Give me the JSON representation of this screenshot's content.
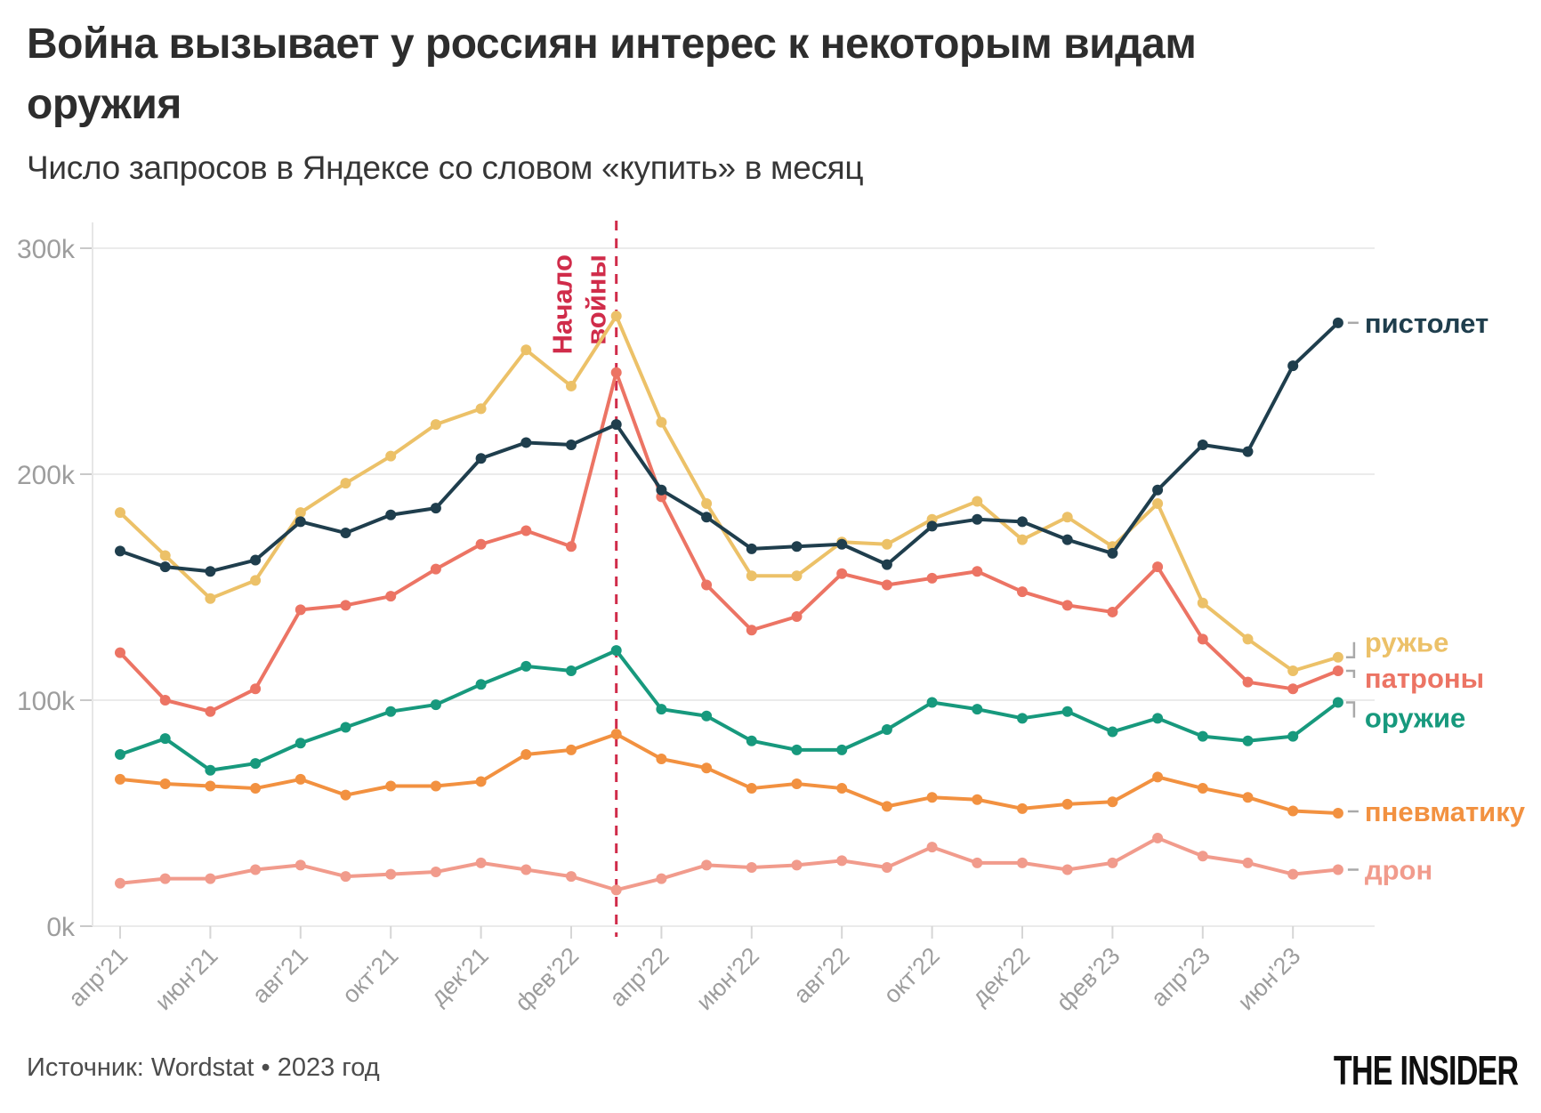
{
  "header": {
    "title_line1": "Война вызывает у россиян интерес к некоторым видам",
    "title_line2": "оружия",
    "subtitle": "Число запросов в Яндексе со словом «купить» в месяц"
  },
  "footer": {
    "source": "Источник: Wordstat • 2023 год",
    "logo": "THE INSIDER"
  },
  "chart_data": {
    "type": "line",
    "title": "Война вызывает у россиян интерес к некоторым видам оружия",
    "subtitle": "Число запросов в Яндексе со словом «купить» в месяц",
    "unit": "thousands of queries per month",
    "grid": "horizontal",
    "legend_position": "right of line ends",
    "ylim": [
      0,
      300
    ],
    "y_ticks": [
      {
        "value": 0,
        "label": "0k"
      },
      {
        "value": 100,
        "label": "100k"
      },
      {
        "value": 200,
        "label": "200k"
      },
      {
        "value": 300,
        "label": "300k"
      }
    ],
    "x": [
      "апр’21",
      "май’21",
      "июн’21",
      "июл’21",
      "авг’21",
      "сен’21",
      "окт’21",
      "ноя’21",
      "дек’21",
      "янв’22",
      "фев’22",
      "мар’22",
      "апр’22",
      "май’22",
      "июн’22",
      "июл’22",
      "авг’22",
      "сен’22",
      "окт’22",
      "ноя’22",
      "дек’22",
      "янв’23",
      "фев’23",
      "мар’23",
      "апр’23",
      "май’23",
      "июн’23",
      "июл’23"
    ],
    "x_tick_labels": [
      "апр’21",
      "июн’21",
      "авг’21",
      "окт’21",
      "дек’21",
      "фев’22",
      "апр’22",
      "июн’22",
      "авг’22",
      "окт’22",
      "дек’22",
      "фев’23",
      "апр’23",
      "июн’23"
    ],
    "annotation": {
      "label": "Начало войны",
      "lines": [
        "Начало",
        "войны"
      ],
      "x": "мар’22",
      "style": "vertical dashed line",
      "color": "#d02c4a"
    },
    "series": [
      {
        "id": "pistolet",
        "name": "пистолет",
        "color": "#1f3e4d",
        "values": [
          166,
          159,
          157,
          162,
          179,
          174,
          182,
          185,
          207,
          214,
          213,
          222,
          193,
          181,
          167,
          168,
          169,
          160,
          177,
          180,
          179,
          171,
          165,
          193,
          213,
          210,
          248,
          267
        ]
      },
      {
        "id": "ruzhye",
        "name": "ружье",
        "color": "#ecc168",
        "values": [
          183,
          164,
          145,
          153,
          183,
          196,
          208,
          222,
          229,
          255,
          239,
          270,
          223,
          187,
          155,
          155,
          170,
          169,
          180,
          188,
          171,
          181,
          168,
          187,
          143,
          127,
          113,
          119
        ]
      },
      {
        "id": "patrony",
        "name": "патроны",
        "color": "#ec7464",
        "values": [
          121,
          100,
          95,
          105,
          140,
          142,
          146,
          158,
          169,
          175,
          168,
          245,
          190,
          151,
          131,
          137,
          156,
          151,
          154,
          157,
          148,
          142,
          139,
          159,
          127,
          108,
          105,
          113
        ]
      },
      {
        "id": "oruzhie",
        "name": "оружие",
        "color": "#17997d",
        "values": [
          76,
          83,
          69,
          72,
          81,
          88,
          95,
          98,
          107,
          115,
          113,
          122,
          96,
          93,
          82,
          78,
          78,
          87,
          99,
          96,
          92,
          95,
          86,
          92,
          84,
          82,
          84,
          99
        ]
      },
      {
        "id": "pnevmatiku",
        "name": "пневматику",
        "color": "#f29140",
        "values": [
          65,
          63,
          62,
          61,
          65,
          58,
          62,
          62,
          64,
          76,
          78,
          85,
          74,
          70,
          61,
          63,
          61,
          53,
          57,
          56,
          52,
          54,
          55,
          66,
          61,
          57,
          51,
          50
        ]
      },
      {
        "id": "dron",
        "name": "дрон",
        "color": "#f19b8c",
        "values": [
          19,
          21,
          21,
          25,
          27,
          22,
          23,
          24,
          28,
          25,
          22,
          16,
          21,
          27,
          26,
          27,
          29,
          26,
          35,
          28,
          28,
          25,
          28,
          39,
          31,
          28,
          23,
          25
        ]
      }
    ]
  }
}
